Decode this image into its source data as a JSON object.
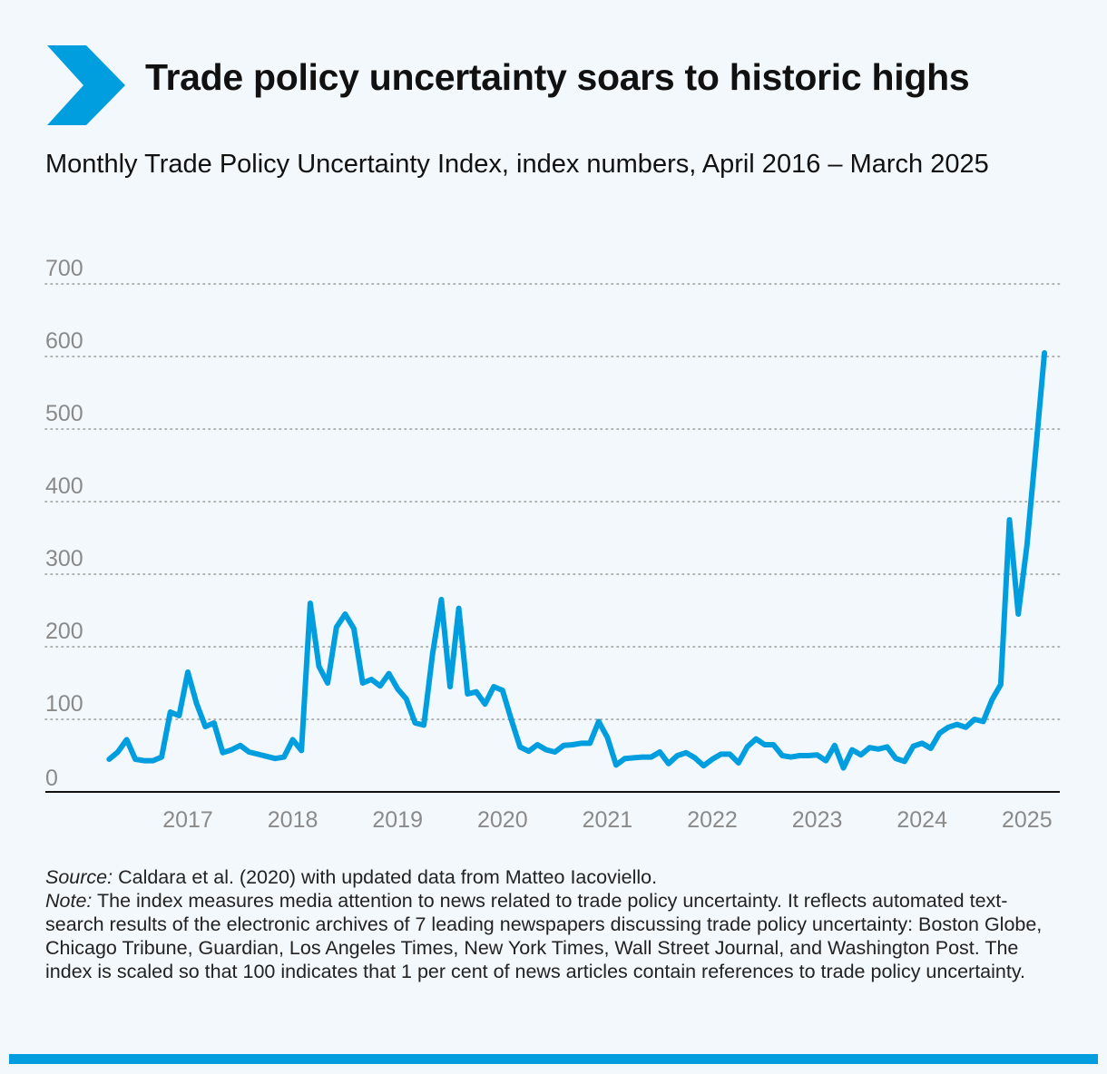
{
  "colors": {
    "accent": "#009ede",
    "grid": "#9a9a9a",
    "tick": "#8a8a8a"
  },
  "header": {
    "icon": "chevron-right-icon",
    "title": "Trade policy uncertainty soars to historic highs",
    "subtitle": "Monthly Trade Policy Uncertainty Index, index numbers, April 2016 – March 2025"
  },
  "footer": {
    "source_label": "Source:",
    "source_text": " Caldara et al. (2020) with updated data from Matteo Iacoviello.",
    "note_label": "Note:",
    "note_text": " The index measures media attention to news related to trade policy uncertainty. It reflects automated text-search results of the electronic archives of 7 leading newspapers discussing trade policy uncertainty: Boston Globe, Chicago Tribune, Guardian, Los Angeles Times, New York Times, Wall Street Journal, and Washington Post. The index is scaled so that 100 indicates that 1 per cent of news articles contain references to trade policy uncertainty."
  },
  "chart_data": {
    "type": "line",
    "title": "Trade policy uncertainty soars to historic highs",
    "subtitle": "Monthly Trade Policy Uncertainty Index, index numbers, April 2016 – March 2025",
    "xlabel": "",
    "ylabel": "",
    "ylim": [
      0,
      700
    ],
    "yticks": [
      0,
      100,
      200,
      300,
      400,
      500,
      600,
      700
    ],
    "xtick_labels": [
      "2017",
      "2018",
      "2019",
      "2020",
      "2021",
      "2022",
      "2023",
      "2024",
      "2025"
    ],
    "grid": true,
    "start": "2016-04",
    "end": "2025-03",
    "series": [
      {
        "name": "Trade Policy Uncertainty Index",
        "values": [
          45,
          55,
          72,
          45,
          43,
          43,
          48,
          110,
          105,
          165,
          122,
          90,
          95,
          54,
          58,
          64,
          55,
          52,
          49,
          46,
          48,
          72,
          57,
          260,
          173,
          150,
          227,
          245,
          225,
          150,
          155,
          146,
          163,
          142,
          128,
          95,
          92,
          190,
          265,
          145,
          253,
          135,
          138,
          121,
          145,
          140,
          100,
          62,
          56,
          65,
          58,
          55,
          64,
          65,
          67,
          67,
          97,
          75,
          37,
          46,
          47,
          48,
          48,
          55,
          39,
          50,
          54,
          47,
          36,
          45,
          52,
          52,
          40,
          62,
          73,
          65,
          65,
          50,
          48,
          50,
          50,
          51,
          43,
          64,
          33,
          58,
          51,
          61,
          59,
          62,
          46,
          42,
          63,
          67,
          60,
          81,
          89,
          93,
          89,
          100,
          97,
          127,
          148,
          375,
          245,
          340,
          470,
          605
        ]
      }
    ]
  }
}
